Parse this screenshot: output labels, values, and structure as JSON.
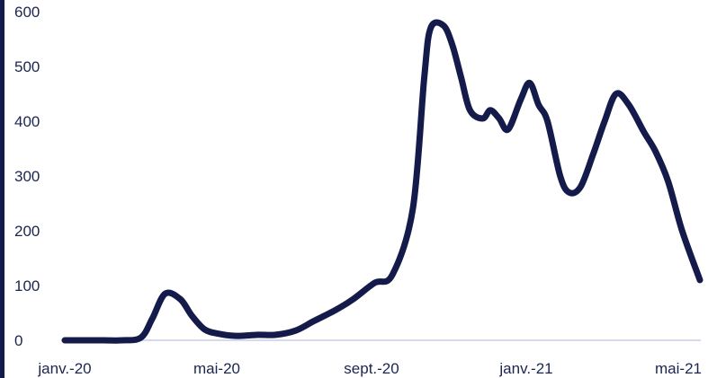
{
  "colors": {
    "line": "#141b4a",
    "left_bar": "#141b4a",
    "axis_line": "#c9cde6",
    "tick_text": "#1b2550"
  },
  "chart_data": {
    "type": "line",
    "title": "",
    "xlabel": "",
    "ylabel": "",
    "ylim": [
      0,
      600
    ],
    "yticks": [
      "0",
      "100",
      "200",
      "300",
      "400",
      "500",
      "600"
    ],
    "xticks": [
      "janv.-20",
      "mai-20",
      "sept.-20",
      "janv.-21",
      "mai-21"
    ],
    "grid": false,
    "legend": "none",
    "series": [
      {
        "x": [
          "2020-01-01",
          "2020-01-15",
          "2020-02-01",
          "2020-02-15",
          "2020-03-01",
          "2020-03-10",
          "2020-03-20",
          "2020-04-01",
          "2020-04-10",
          "2020-04-20",
          "2020-05-01",
          "2020-05-15",
          "2020-06-01",
          "2020-06-15",
          "2020-07-01",
          "2020-07-15",
          "2020-08-01",
          "2020-08-15",
          "2020-09-01",
          "2020-09-15",
          "2020-10-01",
          "2020-10-10",
          "2020-10-15",
          "2020-10-25",
          "2020-11-01",
          "2020-11-08",
          "2020-11-15",
          "2020-11-25",
          "2020-12-01",
          "2020-12-08",
          "2020-12-15",
          "2020-12-25",
          "2021-01-01",
          "2021-01-08",
          "2021-01-15",
          "2021-01-25",
          "2021-02-01",
          "2021-02-10",
          "2021-02-20",
          "2021-03-01",
          "2021-03-10",
          "2021-03-20",
          "2021-04-01",
          "2021-04-10",
          "2021-04-20",
          "2021-05-01",
          "2021-05-15"
        ],
        "values": [
          0,
          0,
          0,
          0,
          5,
          40,
          85,
          75,
          45,
          20,
          12,
          8,
          10,
          10,
          18,
          35,
          55,
          75,
          105,
          120,
          240,
          480,
          570,
          575,
          540,
          480,
          420,
          405,
          420,
          405,
          385,
          440,
          470,
          430,
          400,
          300,
          270,
          280,
          340,
          400,
          450,
          430,
          380,
          345,
          290,
          200,
          110
        ]
      }
    ]
  }
}
